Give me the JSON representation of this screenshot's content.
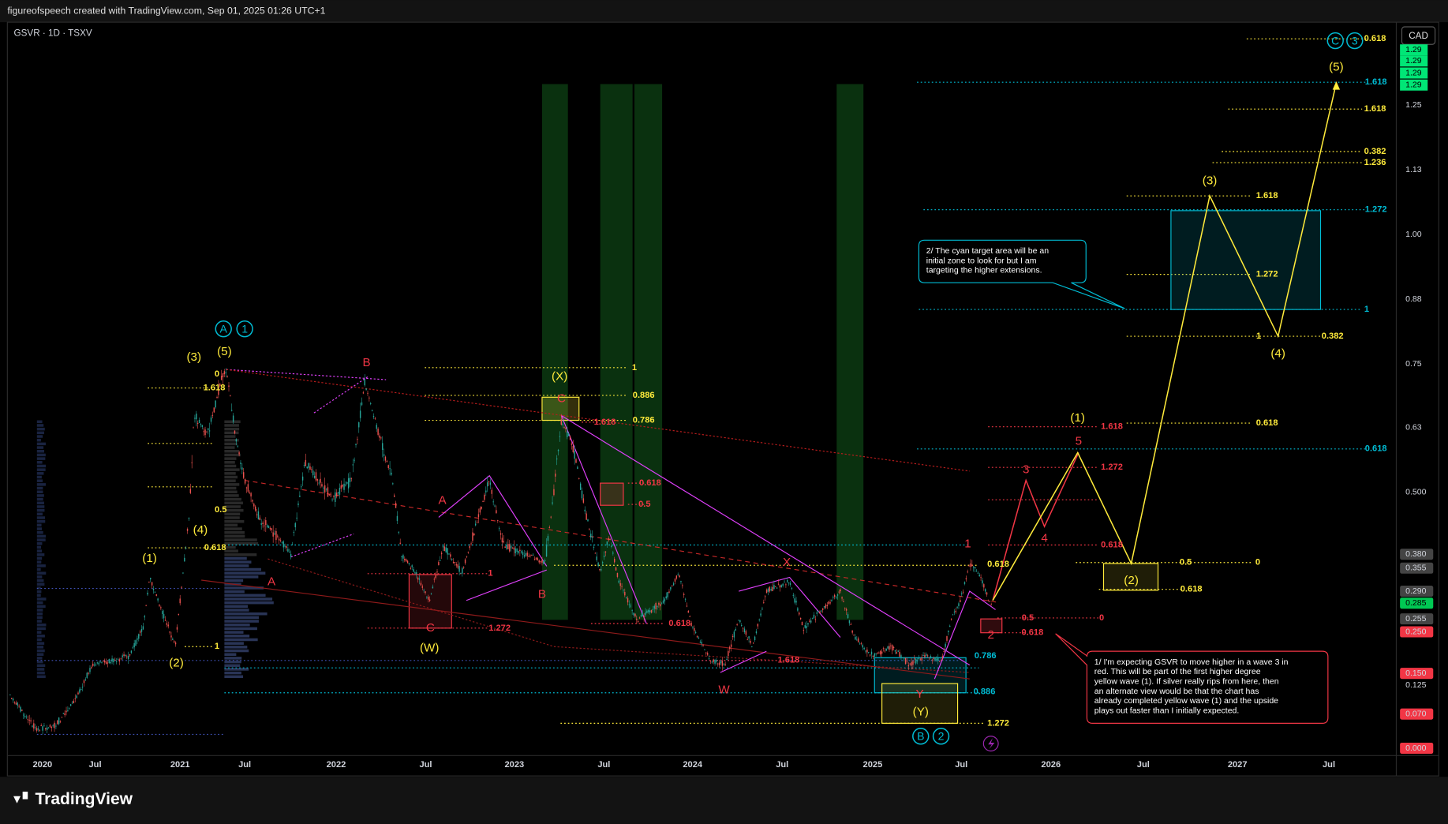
{
  "header": {
    "attribution": "figureofspeech created with TradingView.com, Sep 01, 2025 01:26 UTC+1",
    "symbol": "GSVR · 1D · TSXV",
    "currency": "CAD"
  },
  "price_axis": {
    "last_prices": [
      "1.29",
      "1.29",
      "1.29",
      "1.29"
    ],
    "labels": [
      "1.25",
      "1.13",
      "1.00",
      "0.88",
      "0.75",
      "0.63",
      "0.500",
      "0.380",
      "0.355",
      "0.290",
      "0.285",
      "0.255",
      "0.250",
      "0.150",
      "0.125",
      "0.070",
      "0.000"
    ]
  },
  "time_axis": {
    "labels": [
      "2020",
      "Jul",
      "2021",
      "Jul",
      "2022",
      "Jul",
      "2023",
      "Jul",
      "2024",
      "Jul",
      "2025",
      "Jul",
      "2026",
      "Jul",
      "2027",
      "Jul"
    ]
  },
  "wave_labels": [
    "(1)",
    "(2)",
    "(3)",
    "(4)",
    "(5)",
    "(X)",
    "(W)",
    "(Y)",
    "(1)",
    "(2)",
    "(3)",
    "(4)",
    "(5)",
    "B",
    "A",
    "C",
    "A",
    "B",
    "C",
    "X",
    "W",
    "Y",
    "1",
    "2",
    "3",
    "4",
    "5"
  ],
  "circled_labels": [
    "A",
    "1",
    "B",
    "2",
    "C",
    "3"
  ],
  "fib_labels": [
    "0",
    "1.618",
    "0.5",
    "0.618",
    "1",
    "1",
    "0.886",
    "0.786",
    "0.618",
    "1.272",
    "0.618",
    "1.618",
    "1.272",
    "1",
    "0.382",
    "0.5",
    "0",
    "0.618",
    "0.618",
    "1.618",
    "0.382",
    "1.236",
    "1.618",
    "1.272",
    "1",
    "0.618",
    "0.786",
    "0.886",
    "1.618",
    "0.618",
    "0.5",
    "1.272",
    "1",
    "0.618",
    "1.618",
    "1.618",
    "1.272",
    "0.618",
    "0.5",
    "0",
    "0.618"
  ],
  "notes": [
    [
      "1/ I'm expecting GSVR to move higher in a wave 3 in",
      "red. This will be part of the first higher degree",
      "yellow wave (1). If silver really rips from here, then",
      "an alternate view would be that the chart has",
      "already completed yellow wave (1) and the upside",
      "plays out faster than I initially expected."
    ],
    [
      "2/ The cyan target area will be an",
      "initial zone to look for but I am",
      "targeting the higher extensions."
    ]
  ],
  "footer": {
    "brand": "TradingView"
  }
}
